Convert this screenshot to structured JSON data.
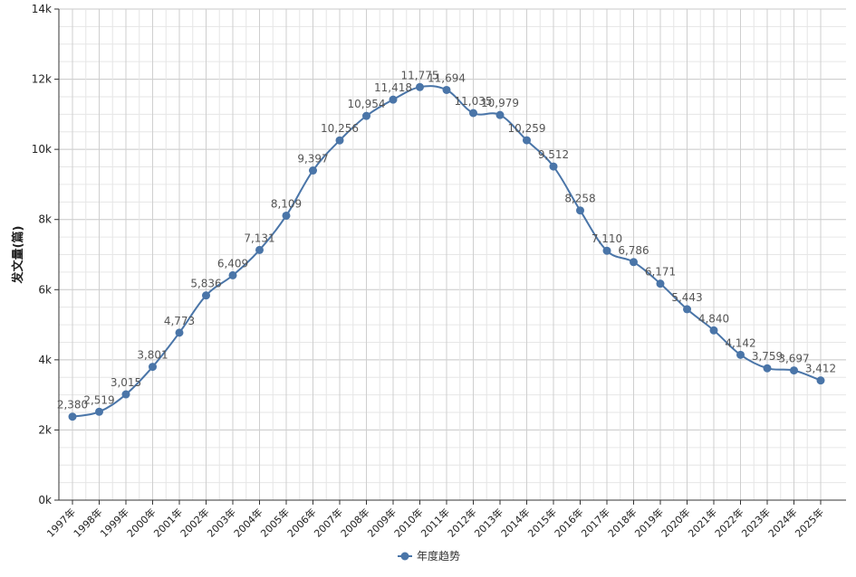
{
  "chart_data": {
    "type": "line",
    "ylabel": "发文量(篇)",
    "ylim": [
      0,
      14000
    ],
    "yticks": [
      0,
      2000,
      4000,
      6000,
      8000,
      10000,
      12000,
      14000
    ],
    "ytick_labels": [
      "0k",
      "2k",
      "4k",
      "6k",
      "8k",
      "10k",
      "12k",
      "14k"
    ],
    "categories": [
      "1997年",
      "1998年",
      "1999年",
      "2000年",
      "2001年",
      "2002年",
      "2003年",
      "2004年",
      "2005年",
      "2006年",
      "2007年",
      "2008年",
      "2009年",
      "2010年",
      "2011年",
      "2012年",
      "2013年",
      "2014年",
      "2015年",
      "2016年",
      "2017年",
      "2018年",
      "2019年",
      "2020年",
      "2021年",
      "2022年",
      "2023年",
      "2024年",
      "2025年"
    ],
    "series": [
      {
        "name": "年度趋势",
        "color": "#4a75a8",
        "values": [
          2380,
          2519,
          3015,
          3801,
          4773,
          5836,
          6409,
          7131,
          8109,
          9397,
          10256,
          10954,
          11418,
          11775,
          11694,
          11035,
          10979,
          10259,
          9512,
          8258,
          7110,
          6786,
          6171,
          5443,
          4840,
          4142,
          3759,
          3697,
          3412
        ],
        "labels": [
          "2,380",
          "2,519",
          "3,015",
          "3,801",
          "4,773",
          "5,836",
          "6,409",
          "7,131",
          "8,109",
          "9,397",
          "10,256",
          "10,954",
          "11,418",
          "11,775",
          "11,694",
          "11,035",
          "10,979",
          "10,259",
          "9,512",
          "8,258",
          "7,110",
          "6,786",
          "6,171",
          "5,443",
          "4,840",
          "4,142",
          "3,759",
          "3,697",
          "3,412"
        ]
      }
    ],
    "grid": true,
    "legend": "bottom-center"
  }
}
